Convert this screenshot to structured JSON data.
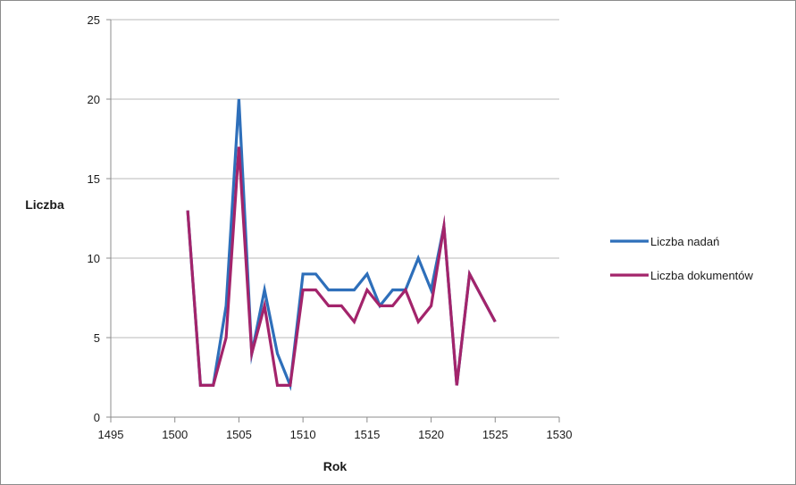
{
  "chart_data": {
    "type": "line",
    "xlabel": "Rok",
    "ylabel": "Liczba",
    "xlim": [
      1495,
      1530
    ],
    "ylim": [
      0,
      25
    ],
    "xticks": [
      1495,
      1500,
      1505,
      1510,
      1515,
      1520,
      1525,
      1530
    ],
    "yticks": [
      0,
      5,
      10,
      15,
      20,
      25
    ],
    "grid": "horizontal",
    "legend_position": "right",
    "series": [
      {
        "name": "Liczba nadań",
        "color": "#2e6fba",
        "points": [
          [
            1501,
            13
          ],
          [
            1502,
            2
          ],
          [
            1503,
            2
          ],
          [
            1504,
            7
          ],
          [
            1505,
            20
          ],
          [
            1506,
            4
          ],
          [
            1507,
            8
          ],
          [
            1508,
            4
          ],
          [
            1509,
            2
          ],
          [
            1510,
            9
          ],
          [
            1511,
            9
          ],
          [
            1512,
            8
          ],
          [
            1513,
            8
          ],
          [
            1514,
            8
          ],
          [
            1515,
            9
          ],
          [
            1516,
            7
          ],
          [
            1517,
            8
          ],
          [
            1518,
            8
          ],
          [
            1519,
            10
          ],
          [
            1520,
            8
          ],
          [
            1521,
            12
          ],
          [
            1522,
            2
          ],
          [
            1523,
            9
          ],
          [
            1524,
            7.5
          ],
          [
            1525,
            6
          ]
        ]
      },
      {
        "name": "Liczba dokumentów",
        "color": "#a3246b",
        "points": [
          [
            1501,
            13
          ],
          [
            1502,
            2
          ],
          [
            1503,
            2
          ],
          [
            1504,
            5
          ],
          [
            1505,
            17
          ],
          [
            1506,
            4
          ],
          [
            1507,
            7
          ],
          [
            1508,
            2
          ],
          [
            1509,
            2
          ],
          [
            1510,
            8
          ],
          [
            1511,
            8
          ],
          [
            1512,
            7
          ],
          [
            1513,
            7
          ],
          [
            1514,
            6
          ],
          [
            1515,
            8
          ],
          [
            1516,
            7
          ],
          [
            1517,
            7
          ],
          [
            1518,
            8
          ],
          [
            1519,
            6
          ],
          [
            1520,
            7
          ],
          [
            1521,
            12
          ],
          [
            1522,
            2
          ],
          [
            1523,
            9
          ],
          [
            1524,
            7.5
          ],
          [
            1525,
            6
          ]
        ]
      }
    ]
  }
}
